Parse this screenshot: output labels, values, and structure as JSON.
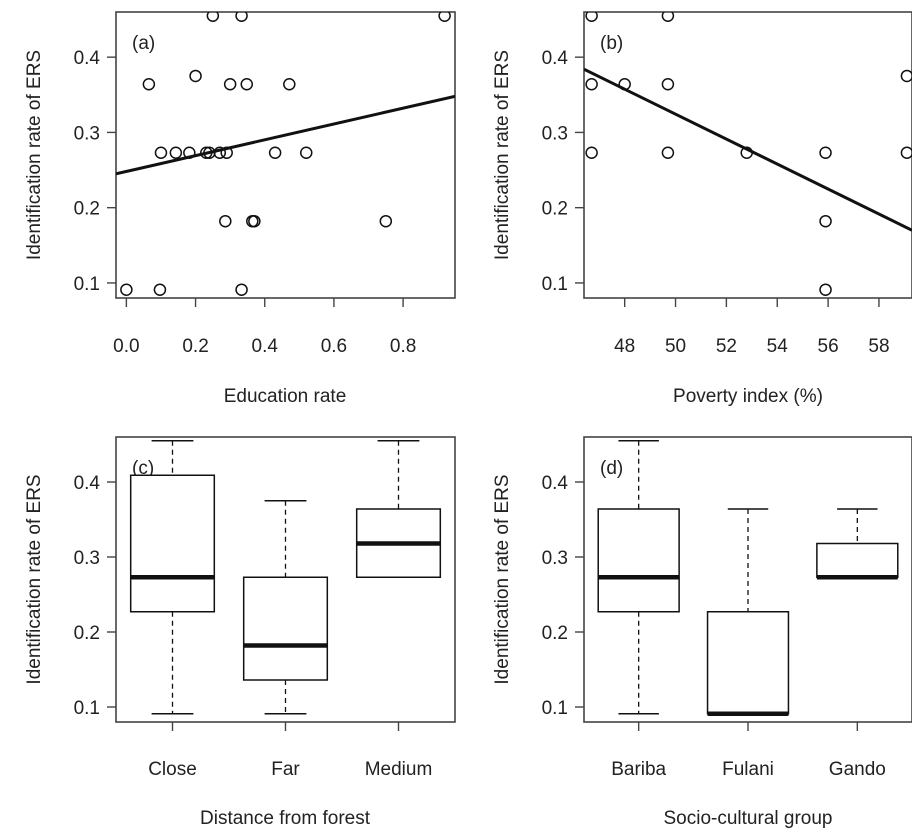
{
  "colors": {
    "ink": "#111111",
    "axis": "#444444",
    "background": "#ffffff"
  },
  "chart_data": [
    {
      "panel": "(a)",
      "type": "scatter",
      "xlabel": "Education rate",
      "ylabel": "Identification rate of ERS",
      "xlim": [
        -0.03,
        0.95
      ],
      "ylim": [
        0.08,
        0.46
      ],
      "xticks": [
        0.0,
        0.2,
        0.4,
        0.6,
        0.8
      ],
      "yticks": [
        0.1,
        0.2,
        0.3,
        0.4
      ],
      "points": [
        [
          0.0,
          0.091
        ],
        [
          0.097,
          0.091
        ],
        [
          0.333,
          0.091
        ],
        [
          0.286,
          0.182
        ],
        [
          0.364,
          0.182
        ],
        [
          0.37,
          0.182
        ],
        [
          0.75,
          0.182
        ],
        [
          0.1,
          0.273
        ],
        [
          0.143,
          0.273
        ],
        [
          0.182,
          0.273
        ],
        [
          0.231,
          0.273
        ],
        [
          0.24,
          0.273
        ],
        [
          0.27,
          0.273
        ],
        [
          0.29,
          0.273
        ],
        [
          0.43,
          0.273
        ],
        [
          0.52,
          0.273
        ],
        [
          0.065,
          0.364
        ],
        [
          0.2,
          0.375
        ],
        [
          0.3,
          0.364
        ],
        [
          0.348,
          0.364
        ],
        [
          0.471,
          0.364
        ],
        [
          0.25,
          0.455
        ],
        [
          0.333,
          0.455
        ],
        [
          0.92,
          0.455
        ]
      ],
      "trend": {
        "x": [
          -0.03,
          0.95
        ],
        "y": [
          0.245,
          0.348
        ]
      }
    },
    {
      "panel": "(b)",
      "type": "scatter",
      "xlabel": "Poverty index (%)",
      "ylabel": "Identification rate of ERS",
      "xlim": [
        46.4,
        59.3
      ],
      "ylim": [
        0.08,
        0.46
      ],
      "xticks": [
        48,
        50,
        52,
        54,
        56,
        58
      ],
      "yticks": [
        0.1,
        0.2,
        0.3,
        0.4
      ],
      "points": [
        [
          46.7,
          0.455
        ],
        [
          46.7,
          0.364
        ],
        [
          46.7,
          0.273
        ],
        [
          48.0,
          0.364
        ],
        [
          49.7,
          0.455
        ],
        [
          49.7,
          0.364
        ],
        [
          49.7,
          0.273
        ],
        [
          52.8,
          0.273
        ],
        [
          55.9,
          0.273
        ],
        [
          55.9,
          0.182
        ],
        [
          55.9,
          0.091
        ],
        [
          59.1,
          0.375
        ],
        [
          59.1,
          0.273
        ]
      ],
      "trend": {
        "x": [
          46.4,
          59.3
        ],
        "y": [
          0.384,
          0.17
        ]
      }
    },
    {
      "panel": "(c)",
      "type": "box",
      "xlabel": "Distance from forest",
      "ylabel": "Identification rate of ERS",
      "ylim": [
        0.08,
        0.46
      ],
      "yticks": [
        0.1,
        0.2,
        0.3,
        0.4
      ],
      "categories": [
        "Close",
        "Far",
        "Medium"
      ],
      "boxes": [
        {
          "min": 0.091,
          "q1": 0.227,
          "median": 0.273,
          "q3": 0.409,
          "max": 0.455
        },
        {
          "min": 0.091,
          "q1": 0.136,
          "median": 0.182,
          "q3": 0.273,
          "max": 0.375
        },
        {
          "min": 0.273,
          "q1": 0.273,
          "median": 0.318,
          "q3": 0.364,
          "max": 0.455
        }
      ]
    },
    {
      "panel": "(d)",
      "type": "box",
      "xlabel": "Socio-cultural group",
      "ylabel": "Identification rate of ERS",
      "ylim": [
        0.08,
        0.46
      ],
      "yticks": [
        0.1,
        0.2,
        0.3,
        0.4
      ],
      "categories": [
        "Bariba",
        "Fulani",
        "Gando"
      ],
      "boxes": [
        {
          "min": 0.091,
          "q1": 0.227,
          "median": 0.273,
          "q3": 0.364,
          "max": 0.455
        },
        {
          "min": 0.091,
          "q1": 0.091,
          "median": 0.091,
          "q3": 0.227,
          "max": 0.364
        },
        {
          "min": 0.273,
          "q1": 0.273,
          "median": 0.273,
          "q3": 0.318,
          "max": 0.364
        }
      ]
    }
  ]
}
